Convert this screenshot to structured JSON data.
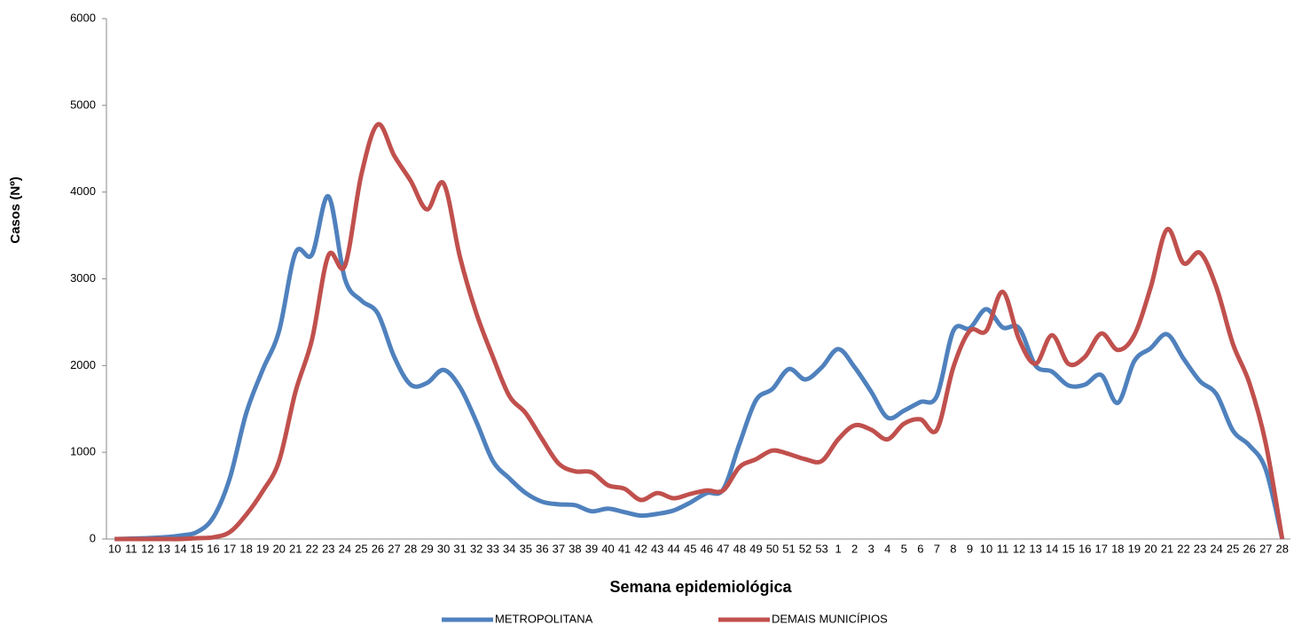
{
  "chart_data": {
    "type": "line",
    "x_label": "Semana epidemiológica",
    "y_label": "Casos (Nº)",
    "categories": [
      "10",
      "11",
      "12",
      "13",
      "14",
      "15",
      "16",
      "17",
      "18",
      "19",
      "20",
      "21",
      "22",
      "23",
      "24",
      "25",
      "26",
      "27",
      "28",
      "29",
      "30",
      "31",
      "32",
      "33",
      "34",
      "35",
      "36",
      "37",
      "38",
      "39",
      "40",
      "41",
      "42",
      "43",
      "44",
      "45",
      "46",
      "47",
      "48",
      "49",
      "50",
      "51",
      "52",
      "53",
      "1",
      "2",
      "3",
      "4",
      "5",
      "6",
      "7",
      "8",
      "9",
      "10",
      "11",
      "12",
      "13",
      "14",
      "15",
      "16",
      "17",
      "18",
      "19",
      "20",
      "21",
      "22",
      "23",
      "24",
      "25",
      "26",
      "27",
      "28"
    ],
    "series": [
      {
        "name": "METROPOLITANA",
        "color": "#4f81bd",
        "values": [
          0,
          5,
          10,
          20,
          40,
          80,
          250,
          700,
          1450,
          1950,
          2400,
          3300,
          3280,
          3950,
          3000,
          2750,
          2600,
          2100,
          1780,
          1800,
          1950,
          1750,
          1350,
          900,
          700,
          530,
          430,
          400,
          390,
          320,
          350,
          310,
          270,
          290,
          330,
          420,
          530,
          570,
          1100,
          1600,
          1730,
          1960,
          1840,
          1980,
          2190,
          1980,
          1700,
          1400,
          1480,
          1580,
          1650,
          2400,
          2430,
          2650,
          2440,
          2430,
          2000,
          1930,
          1770,
          1780,
          1890,
          1570,
          2050,
          2200,
          2360,
          2080,
          1820,
          1670,
          1250,
          1080,
          800,
          0
        ]
      },
      {
        "name": "DEMAIS MUNICÍPIOS",
        "color": "#c0504d",
        "values": [
          0,
          0,
          0,
          0,
          0,
          10,
          20,
          80,
          280,
          550,
          900,
          1700,
          2300,
          3270,
          3150,
          4200,
          4780,
          4420,
          4130,
          3800,
          4100,
          3250,
          2600,
          2100,
          1650,
          1450,
          1150,
          870,
          780,
          770,
          620,
          580,
          450,
          530,
          470,
          520,
          560,
          560,
          830,
          920,
          1020,
          980,
          920,
          900,
          1150,
          1310,
          1260,
          1150,
          1330,
          1380,
          1260,
          1980,
          2400,
          2400,
          2850,
          2300,
          2020,
          2350,
          2020,
          2100,
          2370,
          2180,
          2350,
          2900,
          3570,
          3180,
          3300,
          2900,
          2250,
          1800,
          1100,
          0
        ]
      }
    ],
    "ylim": [
      0,
      6000
    ],
    "yticks": [
      0,
      1000,
      2000,
      3000,
      4000,
      5000,
      6000
    ],
    "grid": false,
    "legend": "bottom"
  }
}
